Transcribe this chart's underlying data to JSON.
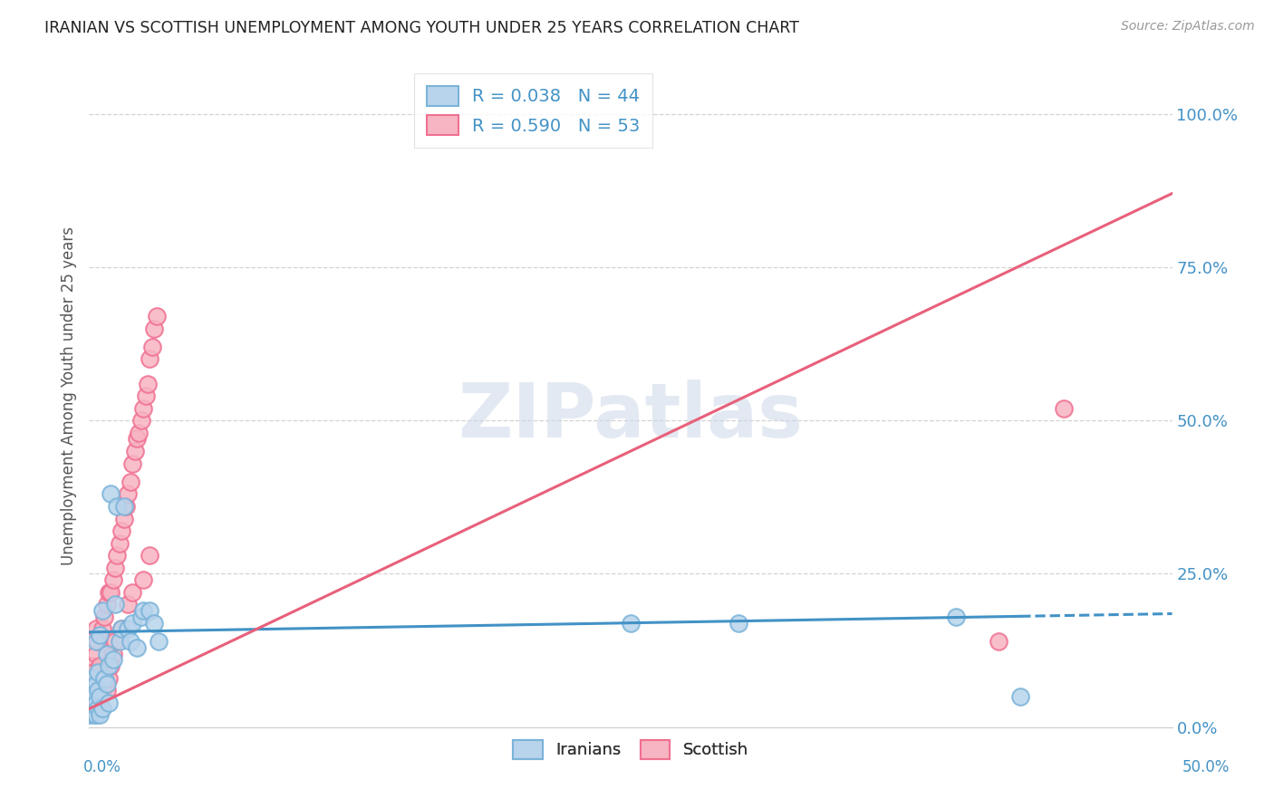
{
  "title": "IRANIAN VS SCOTTISH UNEMPLOYMENT AMONG YOUTH UNDER 25 YEARS CORRELATION CHART",
  "source": "Source: ZipAtlas.com",
  "ylabel": "Unemployment Among Youth under 25 years",
  "ytick_labels": [
    "0.0%",
    "25.0%",
    "50.0%",
    "75.0%",
    "100.0%"
  ],
  "ytick_values": [
    0.0,
    0.25,
    0.5,
    0.75,
    1.0
  ],
  "xmin": 0.0,
  "xmax": 0.5,
  "ymin": 0.0,
  "ymax": 1.08,
  "watermark": "ZIPatlas",
  "iranians_color": "#7ab3d9",
  "iranians_face": "#b8d4ec",
  "scottish_color": "#f07090",
  "scottish_face": "#f7b4c2",
  "line_iranian_color": "#4292c6",
  "line_scottish_color": "#e8607a",
  "grid_color": "#c8c8c8",
  "background_color": "#ffffff",
  "title_color": "#222222",
  "axis_label_color": "#4292c6",
  "legend_r1": "R = 0.038   N = 44",
  "legend_r2": "R = 0.590   N = 53",
  "iranians_x": [
    0.0,
    0.0,
    0.001,
    0.001,
    0.002,
    0.002,
    0.002,
    0.003,
    0.003,
    0.003,
    0.003,
    0.004,
    0.004,
    0.004,
    0.005,
    0.005,
    0.005,
    0.006,
    0.006,
    0.007,
    0.008,
    0.008,
    0.009,
    0.009,
    0.01,
    0.011,
    0.012,
    0.013,
    0.014,
    0.015,
    0.016,
    0.018,
    0.019,
    0.02,
    0.022,
    0.024,
    0.025,
    0.028,
    0.03,
    0.032,
    0.25,
    0.3,
    0.4,
    0.43
  ],
  "iranians_y": [
    0.02,
    0.04,
    0.03,
    0.06,
    0.02,
    0.05,
    0.08,
    0.02,
    0.04,
    0.07,
    0.14,
    0.03,
    0.06,
    0.09,
    0.02,
    0.05,
    0.15,
    0.03,
    0.19,
    0.08,
    0.07,
    0.12,
    0.04,
    0.1,
    0.38,
    0.11,
    0.2,
    0.36,
    0.14,
    0.16,
    0.36,
    0.16,
    0.14,
    0.17,
    0.13,
    0.18,
    0.19,
    0.19,
    0.17,
    0.14,
    0.17,
    0.17,
    0.18,
    0.05
  ],
  "scottish_x": [
    0.0,
    0.0,
    0.001,
    0.001,
    0.002,
    0.002,
    0.003,
    0.003,
    0.003,
    0.004,
    0.004,
    0.005,
    0.005,
    0.006,
    0.006,
    0.007,
    0.007,
    0.008,
    0.008,
    0.009,
    0.009,
    0.01,
    0.01,
    0.011,
    0.011,
    0.012,
    0.012,
    0.013,
    0.014,
    0.015,
    0.015,
    0.016,
    0.017,
    0.018,
    0.018,
    0.019,
    0.02,
    0.02,
    0.021,
    0.022,
    0.023,
    0.024,
    0.025,
    0.025,
    0.026,
    0.027,
    0.028,
    0.028,
    0.029,
    0.03,
    0.031,
    0.45,
    0.42
  ],
  "scottish_y": [
    0.04,
    0.08,
    0.05,
    0.1,
    0.04,
    0.09,
    0.06,
    0.12,
    0.16,
    0.07,
    0.14,
    0.05,
    0.1,
    0.06,
    0.16,
    0.08,
    0.18,
    0.06,
    0.2,
    0.08,
    0.22,
    0.1,
    0.22,
    0.12,
    0.24,
    0.14,
    0.26,
    0.28,
    0.3,
    0.16,
    0.32,
    0.34,
    0.36,
    0.2,
    0.38,
    0.4,
    0.22,
    0.43,
    0.45,
    0.47,
    0.48,
    0.5,
    0.24,
    0.52,
    0.54,
    0.56,
    0.28,
    0.6,
    0.62,
    0.65,
    0.67,
    0.52,
    0.14
  ],
  "iran_line_x0": 0.0,
  "iran_line_y0": 0.155,
  "iran_line_x1": 0.5,
  "iran_line_y1": 0.185,
  "scot_line_x0": 0.0,
  "scot_line_y0": 0.03,
  "scot_line_x1": 0.5,
  "scot_line_y1": 0.87
}
